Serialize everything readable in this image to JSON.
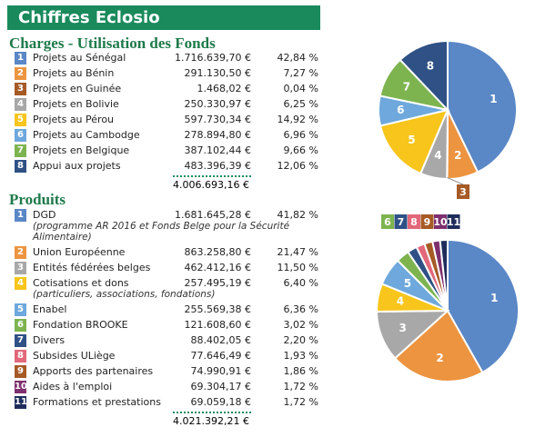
{
  "header": "Chiffres Eclosio",
  "chart_data": [
    {
      "type": "pie",
      "title": "Charges - Utilisation des Fonds",
      "slice_labels": [
        "1",
        "2",
        "3",
        "4",
        "5",
        "6",
        "7",
        "8"
      ],
      "categories": [
        "Projets au Sénégal",
        "Projets au Bénin",
        "Projets en Guinée",
        "Projets en Bolivie",
        "Projets au Pérou",
        "Projets au Cambodge",
        "Projets en Belgique",
        "Appui aux projets"
      ],
      "notes": [
        null,
        null,
        null,
        null,
        null,
        null,
        null,
        null
      ],
      "amounts": [
        "1.716.639,70 €",
        "291.130,50 €",
        "1.468,02 €",
        "250.330,97 €",
        "597.730,34 €",
        "278.894,80 €",
        "387.102,44 €",
        "483.396,39 €"
      ],
      "values": [
        42.84,
        7.27,
        0.04,
        6.25,
        14.92,
        6.96,
        9.66,
        12.06
      ],
      "value_labels": [
        "42,84 %",
        "7,27 %",
        "0,04 %",
        "6,25 %",
        "14,92 %",
        "6,96 %",
        "9,66 %",
        "12,06 %"
      ],
      "colors": [
        "#5a87c6",
        "#ec9440",
        "#a65a26",
        "#a8a8a8",
        "#f7c51b",
        "#6ea8dc",
        "#7db450",
        "#2f5185"
      ],
      "total": "4.006.693,16 €"
    },
    {
      "type": "pie",
      "title": "Produits",
      "slice_labels": [
        "1",
        "2",
        "3",
        "4",
        "5",
        "6",
        "7",
        "8",
        "9",
        "10",
        "11"
      ],
      "categories": [
        "DGD",
        "Union Européenne",
        "Entités fédérées belges",
        "Cotisations et dons",
        "Enabel",
        "Fondation BROOKE",
        "Divers",
        "Subsides ULiège",
        "Apports des partenaires",
        "Aides à l'emploi",
        "Formations et prestations"
      ],
      "notes": [
        "(programme AR 2016 et Fonds Belge pour la Sécurité Alimentaire)",
        null,
        null,
        "(particuliers, associations, fondations)",
        null,
        null,
        null,
        null,
        null,
        null,
        null
      ],
      "amounts": [
        "1.681.645,28 €",
        "863.258,80 €",
        "462.412,16 €",
        "257.495,19 €",
        "255.569,38 €",
        "121.608,60 €",
        "88.402,05 €",
        "77.646,49 €",
        "74.990,91 €",
        "69.304,17 €",
        "69.059,18 €"
      ],
      "values": [
        41.82,
        21.47,
        11.5,
        6.4,
        6.36,
        3.02,
        2.2,
        1.93,
        1.86,
        1.72,
        1.72
      ],
      "value_labels": [
        "41,82 %",
        "21,47 %",
        "11,50 %",
        "6,40 %",
        "6,36 %",
        "3,02 %",
        "2,20 %",
        "1,93 %",
        "1,86 %",
        "1,72 %",
        "1,72 %"
      ],
      "colors": [
        "#5a87c6",
        "#ec9440",
        "#a8a8a8",
        "#f7c51b",
        "#6ea8dc",
        "#7db450",
        "#2f5185",
        "#e2687a",
        "#a65a26",
        "#7e2f6e",
        "#1f2d5c"
      ],
      "total": "4.021.392,21 €"
    }
  ]
}
